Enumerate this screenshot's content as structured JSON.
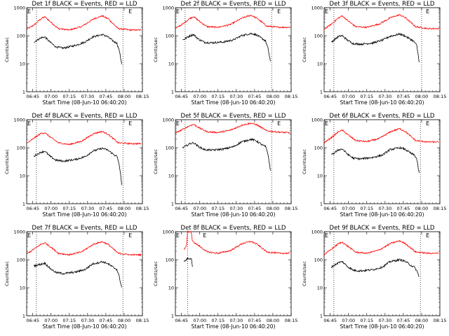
{
  "chart_data": {
    "type": "line",
    "layout": "3x3 grid",
    "y_scale": "log",
    "ylim": [
      1,
      1000
    ],
    "y_ticks": [
      1,
      10,
      100,
      1000
    ],
    "y_tick_labels": [
      "1",
      "10",
      "100",
      "1000"
    ],
    "x_range_minutes": [
      0,
      95
    ],
    "x_ticks": [
      "06:45",
      "07:00",
      "07:15",
      "07:30",
      "07:45",
      "08:00",
      "08:15"
    ],
    "xlabel": "Start Time (08-Jun-10 06:40:20)",
    "ylabel": "Counts/sec",
    "colors": {
      "events": "#000000",
      "lld": "#ff0000"
    },
    "panels": [
      {
        "title": "Det 1f BLACK = Events, RED = LLD",
        "markers": [
          {
            "label": "E",
            "x": 0
          },
          {
            "label": "E",
            "x": 83
          }
        ],
        "vlines": [
          8,
          79
        ],
        "lld": [
          [
            0,
            170
          ],
          [
            6,
            240
          ],
          [
            12,
            410
          ],
          [
            15,
            470
          ],
          [
            20,
            300
          ],
          [
            26,
            180
          ],
          [
            35,
            160
          ],
          [
            45,
            210
          ],
          [
            55,
            400
          ],
          [
            62,
            510
          ],
          [
            67,
            400
          ],
          [
            75,
            180
          ],
          [
            85,
            160
          ],
          [
            94,
            160
          ]
        ],
        "events": [
          [
            6,
            60
          ],
          [
            12,
            85
          ],
          [
            15,
            90
          ],
          [
            19,
            60
          ],
          [
            24,
            40
          ],
          [
            30,
            36
          ],
          [
            40,
            45
          ],
          [
            48,
            60
          ],
          [
            54,
            90
          ],
          [
            62,
            110
          ],
          [
            66,
            95
          ],
          [
            72,
            60
          ],
          [
            74,
            55
          ],
          [
            76,
            30
          ],
          [
            78,
            10
          ]
        ]
      },
      {
        "title": "Det 2f BLACK = Events, RED = LLD",
        "markers": [
          {
            "label": "E",
            "x": 0
          },
          {
            "label": "E",
            "x": 83
          }
        ],
        "vlines": [
          8,
          79
        ],
        "lld": [
          [
            0,
            180
          ],
          [
            6,
            260
          ],
          [
            12,
            420
          ],
          [
            15,
            480
          ],
          [
            20,
            320
          ],
          [
            26,
            210
          ],
          [
            35,
            200
          ],
          [
            45,
            250
          ],
          [
            55,
            430
          ],
          [
            62,
            540
          ],
          [
            67,
            420
          ],
          [
            75,
            220
          ],
          [
            85,
            200
          ],
          [
            94,
            200
          ]
        ],
        "events": [
          [
            6,
            70
          ],
          [
            12,
            100
          ],
          [
            15,
            110
          ],
          [
            19,
            75
          ],
          [
            24,
            58
          ],
          [
            30,
            56
          ],
          [
            40,
            60
          ],
          [
            48,
            72
          ],
          [
            54,
            100
          ],
          [
            62,
            120
          ],
          [
            66,
            110
          ],
          [
            72,
            75
          ],
          [
            74,
            65
          ],
          [
            76,
            35
          ],
          [
            78,
            12
          ]
        ]
      },
      {
        "title": "Det 3f BLACK = Events, RED = LLD",
        "markers": [
          {
            "label": "E",
            "x": 0
          },
          {
            "label": "E",
            "x": 83
          }
        ],
        "vlines": [
          8,
          80
        ],
        "lld": [
          [
            0,
            170
          ],
          [
            6,
            260
          ],
          [
            12,
            440
          ],
          [
            15,
            510
          ],
          [
            20,
            330
          ],
          [
            26,
            210
          ],
          [
            35,
            200
          ],
          [
            45,
            260
          ],
          [
            55,
            450
          ],
          [
            62,
            560
          ],
          [
            67,
            430
          ],
          [
            75,
            210
          ],
          [
            85,
            180
          ],
          [
            94,
            180
          ]
        ],
        "events": [
          [
            6,
            60
          ],
          [
            12,
            95
          ],
          [
            15,
            100
          ],
          [
            19,
            70
          ],
          [
            24,
            52
          ],
          [
            30,
            50
          ],
          [
            40,
            55
          ],
          [
            48,
            70
          ],
          [
            54,
            95
          ],
          [
            62,
            115
          ],
          [
            66,
            100
          ],
          [
            72,
            70
          ],
          [
            74,
            60
          ],
          [
            76,
            45
          ],
          [
            78,
            12
          ]
        ]
      },
      {
        "title": "Det 4f BLACK = Events, RED = LLD",
        "markers": [
          {
            "label": "E",
            "x": 0
          },
          {
            "label": "E",
            "x": 83
          }
        ],
        "vlines": [
          8,
          79
        ],
        "lld": [
          [
            0,
            140
          ],
          [
            6,
            220
          ],
          [
            12,
            330
          ],
          [
            15,
            340
          ],
          [
            20,
            230
          ],
          [
            26,
            150
          ],
          [
            35,
            130
          ],
          [
            45,
            170
          ],
          [
            55,
            320
          ],
          [
            62,
            380
          ],
          [
            67,
            300
          ],
          [
            75,
            150
          ],
          [
            85,
            140
          ],
          [
            94,
            140
          ]
        ],
        "events": [
          [
            6,
            50
          ],
          [
            12,
            70
          ],
          [
            15,
            75
          ],
          [
            19,
            50
          ],
          [
            24,
            36
          ],
          [
            30,
            33
          ],
          [
            40,
            38
          ],
          [
            48,
            48
          ],
          [
            54,
            75
          ],
          [
            62,
            95
          ],
          [
            66,
            85
          ],
          [
            72,
            55
          ],
          [
            74,
            50
          ],
          [
            76,
            25
          ],
          [
            78,
            5
          ]
        ]
      },
      {
        "title": "Det 5f BLACK = Events, RED = LLD",
        "markers": [
          {
            "label": "E",
            "x": 0
          },
          {
            "label": "E",
            "x": 83
          }
        ],
        "vlines": [
          8,
          79
        ],
        "lld": [
          [
            0,
            330
          ],
          [
            6,
            450
          ],
          [
            12,
            620
          ],
          [
            15,
            680
          ],
          [
            20,
            500
          ],
          [
            26,
            370
          ],
          [
            35,
            350
          ],
          [
            45,
            420
          ],
          [
            55,
            650
          ],
          [
            62,
            750
          ],
          [
            67,
            650
          ],
          [
            75,
            400
          ],
          [
            85,
            360
          ],
          [
            94,
            340
          ]
        ],
        "events": [
          [
            6,
            100
          ],
          [
            12,
            140
          ],
          [
            15,
            150
          ],
          [
            19,
            110
          ],
          [
            24,
            85
          ],
          [
            30,
            82
          ],
          [
            40,
            90
          ],
          [
            48,
            110
          ],
          [
            54,
            160
          ],
          [
            62,
            200
          ],
          [
            66,
            180
          ],
          [
            72,
            120
          ],
          [
            74,
            110
          ],
          [
            76,
            60
          ],
          [
            78,
            15
          ]
        ]
      },
      {
        "title": "Det 6f BLACK = Events, RED = LLD",
        "markers": [
          {
            "label": "E",
            "x": 0
          },
          {
            "label": "E",
            "x": 83
          }
        ],
        "vlines": [
          8,
          79
        ],
        "lld": [
          [
            0,
            150
          ],
          [
            6,
            230
          ],
          [
            12,
            380
          ],
          [
            15,
            420
          ],
          [
            20,
            280
          ],
          [
            26,
            180
          ],
          [
            35,
            165
          ],
          [
            45,
            210
          ],
          [
            55,
            380
          ],
          [
            62,
            480
          ],
          [
            67,
            370
          ],
          [
            75,
            180
          ],
          [
            85,
            160
          ],
          [
            94,
            160
          ]
        ],
        "events": [
          [
            6,
            55
          ],
          [
            12,
            85
          ],
          [
            15,
            90
          ],
          [
            19,
            60
          ],
          [
            24,
            42
          ],
          [
            30,
            40
          ],
          [
            40,
            45
          ],
          [
            48,
            55
          ],
          [
            54,
            85
          ],
          [
            62,
            100
          ],
          [
            66,
            90
          ],
          [
            72,
            60
          ],
          [
            74,
            55
          ],
          [
            76,
            40
          ],
          [
            78,
            12
          ]
        ]
      },
      {
        "title": "Det 7f BLACK = Events, RED = LLD",
        "markers": [
          {
            "label": "E",
            "x": 0
          },
          {
            "label": "E",
            "x": 83
          }
        ],
        "vlines": [
          8,
          79
        ],
        "lld": [
          [
            0,
            160
          ],
          [
            6,
            240
          ],
          [
            12,
            360
          ],
          [
            15,
            400
          ],
          [
            20,
            280
          ],
          [
            26,
            170
          ],
          [
            35,
            150
          ],
          [
            45,
            190
          ],
          [
            55,
            360
          ],
          [
            62,
            440
          ],
          [
            67,
            350
          ],
          [
            75,
            170
          ],
          [
            85,
            150
          ],
          [
            94,
            150
          ]
        ],
        "events": [
          [
            6,
            60
          ],
          [
            12,
            70
          ],
          [
            15,
            75
          ],
          [
            19,
            50
          ],
          [
            24,
            35
          ],
          [
            30,
            32
          ],
          [
            40,
            36
          ],
          [
            48,
            45
          ],
          [
            54,
            70
          ],
          [
            62,
            85
          ],
          [
            66,
            75
          ],
          [
            72,
            50
          ],
          [
            74,
            45
          ],
          [
            76,
            25
          ],
          [
            78,
            10
          ]
        ]
      },
      {
        "title": "Det 8f BLACK = Events, RED = LLD",
        "markers": [
          {
            "label": "E",
            "x": 0
          },
          {
            "label": "E",
            "x": 22
          }
        ],
        "vlines": [
          10
        ],
        "lld": [
          [
            7,
            230
          ],
          [
            9,
            300
          ],
          [
            10,
            1000
          ],
          [
            11,
            1000
          ],
          [
            13,
            1000
          ],
          [
            14,
            450
          ],
          [
            20,
            300
          ],
          [
            26,
            190
          ],
          [
            35,
            170
          ],
          [
            45,
            210
          ],
          [
            55,
            380
          ],
          [
            62,
            450
          ],
          [
            67,
            360
          ],
          [
            75,
            190
          ],
          [
            85,
            170
          ],
          [
            94,
            170
          ]
        ],
        "events": [
          [
            7,
            90
          ],
          [
            9,
            100
          ],
          [
            10,
            110
          ],
          [
            11,
            100
          ],
          [
            13,
            120
          ],
          [
            14,
            60
          ]
        ]
      },
      {
        "title": "Det 9f BLACK = Events, RED = LLD",
        "markers": [
          {
            "label": "E",
            "x": 0
          },
          {
            "label": "E",
            "x": 83
          }
        ],
        "vlines": [
          8,
          79
        ],
        "lld": [
          [
            0,
            150
          ],
          [
            6,
            240
          ],
          [
            12,
            380
          ],
          [
            15,
            420
          ],
          [
            20,
            290
          ],
          [
            26,
            185
          ],
          [
            35,
            170
          ],
          [
            45,
            220
          ],
          [
            55,
            390
          ],
          [
            62,
            470
          ],
          [
            67,
            370
          ],
          [
            75,
            190
          ],
          [
            85,
            170
          ],
          [
            94,
            170
          ]
        ],
        "events": [
          [
            6,
            55
          ],
          [
            12,
            80
          ],
          [
            15,
            85
          ],
          [
            19,
            58
          ],
          [
            24,
            42
          ],
          [
            30,
            40
          ],
          [
            40,
            44
          ],
          [
            48,
            55
          ],
          [
            54,
            85
          ],
          [
            62,
            100
          ],
          [
            66,
            90
          ],
          [
            72,
            60
          ],
          [
            74,
            55
          ],
          [
            76,
            40
          ],
          [
            78,
            25
          ]
        ]
      }
    ]
  }
}
